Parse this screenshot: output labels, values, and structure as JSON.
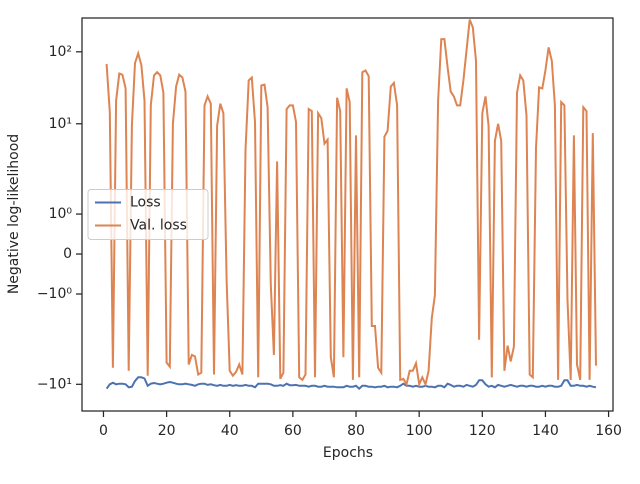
{
  "chart_data": {
    "type": "line",
    "x_label": "Epochs",
    "y_label": "Negative log-likelihood",
    "yscale": "symlog",
    "linthresh": 2,
    "linscale": 1,
    "xlim": [
      -6.8,
      161.4
    ],
    "xticks": [
      0,
      20,
      40,
      60,
      80,
      100,
      120,
      140,
      160
    ],
    "ylim": [
      -23.5,
      295
    ],
    "yticks": [
      {
        "value": -10,
        "label": "−10¹"
      },
      {
        "value": -1,
        "label": "−10⁰"
      },
      0,
      {
        "value": 1,
        "label": "10⁰"
      },
      {
        "value": 10,
        "label": "10¹"
      },
      {
        "value": 100,
        "label": "10²"
      }
    ],
    "legend": "center left",
    "x": [
      1,
      2,
      3,
      4,
      5,
      6,
      7,
      8,
      9,
      10,
      11,
      12,
      13,
      14,
      15,
      16,
      17,
      18,
      19,
      20,
      21,
      22,
      23,
      24,
      25,
      26,
      27,
      28,
      29,
      30,
      31,
      32,
      33,
      34,
      35,
      36,
      37,
      38,
      39,
      40,
      41,
      42,
      43,
      44,
      45,
      46,
      47,
      48,
      49,
      50,
      51,
      52,
      53,
      54,
      55,
      56,
      57,
      58,
      59,
      60,
      61,
      62,
      63,
      64,
      65,
      66,
      67,
      68,
      69,
      70,
      71,
      72,
      73,
      74,
      75,
      76,
      77,
      78,
      79,
      80,
      81,
      82,
      83,
      84,
      85,
      86,
      87,
      88,
      89,
      90,
      91,
      92,
      93,
      94,
      95,
      96,
      97,
      98,
      99,
      100,
      101,
      102,
      103,
      104,
      105,
      106,
      107,
      108,
      109,
      110,
      111,
      112,
      113,
      114,
      115,
      116,
      117,
      118,
      119,
      120,
      121,
      122,
      123,
      124,
      125,
      126,
      127,
      128,
      129,
      130,
      131,
      132,
      133,
      134,
      135,
      136,
      137,
      138,
      139,
      140,
      141,
      142,
      143,
      144,
      145,
      146,
      147,
      148,
      149,
      150,
      151,
      152,
      153,
      154,
      155,
      156
    ],
    "series": [
      {
        "name": "Loss",
        "color": "#4c72b0",
        "values": [
          -11.5,
          -10,
          -9.5,
          -10,
          -9.8,
          -9.8,
          -10,
          -11,
          -10.8,
          -9,
          -8,
          -8,
          -8.3,
          -10.5,
          -9.8,
          -9.6,
          -9.8,
          -10,
          -9.8,
          -9.5,
          -9.3,
          -9.5,
          -9.8,
          -10,
          -10,
          -9.8,
          -10,
          -10.2,
          -10.5,
          -10,
          -9.8,
          -9.8,
          -10.2,
          -10,
          -10.3,
          -10.5,
          -10.2,
          -10.5,
          -10.5,
          -10.2,
          -10.5,
          -10.3,
          -10.5,
          -10.5,
          -10.2,
          -10.5,
          -10.5,
          -11,
          -9.8,
          -9.8,
          -9.8,
          -9.8,
          -10,
          -10.5,
          -10.5,
          -10.3,
          -10.5,
          -9.8,
          -10.3,
          -10.3,
          -10.2,
          -10.5,
          -10.5,
          -10.5,
          -10.8,
          -10.5,
          -10.5,
          -10.8,
          -10.8,
          -10.5,
          -10.8,
          -10.8,
          -10.8,
          -11,
          -11,
          -11,
          -10.5,
          -10.8,
          -10.8,
          -10.5,
          -11.5,
          -10.5,
          -10.5,
          -10.8,
          -10.8,
          -11,
          -10.8,
          -10.8,
          -10.5,
          -11,
          -10.8,
          -10.8,
          -11,
          -10.5,
          -9.8,
          -10.5,
          -10.5,
          -10.8,
          -10.5,
          -10.8,
          -10.8,
          -10.5,
          -10.8,
          -10.8,
          -11,
          -10.5,
          -10.5,
          -11,
          -9.8,
          -10.2,
          -10.8,
          -10.5,
          -10.5,
          -10.8,
          -10.2,
          -10.5,
          -10.8,
          -10.2,
          -8.8,
          -8.8,
          -10,
          -10.8,
          -10.5,
          -11,
          -10.2,
          -10.5,
          -10.8,
          -10.5,
          -10.2,
          -10.5,
          -10.8,
          -10.5,
          -10.5,
          -10.8,
          -10.5,
          -10.5,
          -10.8,
          -10.8,
          -10.5,
          -10.8,
          -10.5,
          -10.5,
          -10.8,
          -10.8,
          -10.5,
          -8.8,
          -8.8,
          -10.5,
          -10.5,
          -10.2,
          -10.5,
          -10.5,
          -10.8,
          -10.5,
          -10.8,
          -11
        ]
      },
      {
        "name": "Val. loss",
        "color": "#dd8452",
        "values": [
          68,
          14.5,
          -5.9,
          21,
          50,
          48,
          31,
          -6.5,
          9.6,
          70,
          95,
          65,
          21,
          -7.6,
          18,
          47,
          52,
          47,
          27,
          -5,
          -5.7,
          10,
          33,
          48,
          44,
          28,
          -5.3,
          -3.9,
          -4.1,
          -7.3,
          -6.9,
          18,
          24,
          19,
          -7.3,
          9.3,
          19,
          14,
          -0.65,
          -6.5,
          -7.6,
          -6.7,
          -5.3,
          -7.3,
          4.3,
          40,
          44,
          10.6,
          -8,
          34,
          35,
          17,
          -0.77,
          -3.9,
          3,
          -8.4,
          -6.9,
          16,
          18,
          18,
          10.6,
          -8,
          -8.7,
          -7.3,
          16,
          15,
          -8,
          14,
          12,
          5.3,
          6,
          -4.2,
          -8,
          23,
          15,
          -4.2,
          31,
          20,
          -8.7,
          6.9,
          -8,
          52,
          55,
          46,
          -1.8,
          -1.8,
          -5.9,
          -6.9,
          6.6,
          8,
          33,
          37,
          18,
          -8.7,
          -8.4,
          -10,
          -6.5,
          -6.5,
          -5.1,
          -10,
          -8,
          -10,
          -6.5,
          -1.6,
          -1.03,
          21,
          150,
          150,
          61,
          28,
          24,
          18,
          18,
          40,
          104,
          280,
          220,
          75,
          -2.4,
          14,
          24,
          9.3,
          -8,
          5.8,
          10,
          5.8,
          -6.5,
          -2.9,
          -4.8,
          -3,
          27,
          47,
          40,
          13,
          -7.3,
          -8,
          4.6,
          32,
          31,
          55,
          115,
          75,
          18,
          -8.7,
          20,
          18,
          -1.15,
          -8.7,
          6.9,
          -5.3,
          -8.7,
          17,
          15,
          -8.7,
          7.4,
          -5.5
        ]
      }
    ]
  }
}
